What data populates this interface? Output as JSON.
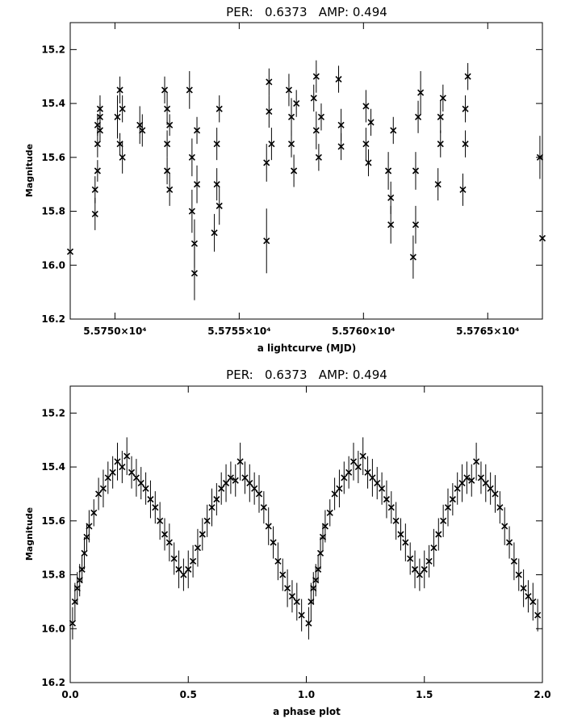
{
  "chart_data": [
    {
      "type": "scatter",
      "title": "PER:   0.6373   AMP: 0.494",
      "xlabel": "a lightcurve (MJD)",
      "ylabel": "Magnitude",
      "xlim": [
        55748.2,
        55767.2
      ],
      "ylim": [
        16.2,
        15.1
      ],
      "y_inverted": true,
      "grid": false,
      "x_ticks": [
        {
          "value": 55750,
          "label": "5.5750×10⁴"
        },
        {
          "value": 55755,
          "label": "5.5755×10⁴"
        },
        {
          "value": 55760,
          "label": "5.5760×10⁴"
        },
        {
          "value": 55765,
          "label": "5.5765×10⁴"
        }
      ],
      "y_ticks": [
        {
          "value": 15.2,
          "label": "15.2"
        },
        {
          "value": 15.4,
          "label": "15.4"
        },
        {
          "value": 15.6,
          "label": "15.6"
        },
        {
          "value": 15.8,
          "label": "15.8"
        },
        {
          "value": 16.0,
          "label": "16.0"
        },
        {
          "value": 16.2,
          "label": "16.2"
        }
      ],
      "marker": "x",
      "error_bars": true,
      "x": [
        55748.2,
        55749.2,
        55749.2,
        55749.3,
        55749.3,
        55749.3,
        55749.4,
        55749.4,
        55749.4,
        55750.1,
        55750.2,
        55750.2,
        55750.3,
        55750.3,
        55751.0,
        55751.1,
        55752.0,
        55752.1,
        55752.1,
        55752.1,
        55752.2,
        55752.2,
        55753.0,
        55753.1,
        55753.1,
        55753.2,
        55753.2,
        55753.3,
        55753.3,
        55754.0,
        55754.1,
        55754.1,
        55754.2,
        55754.2,
        55756.1,
        55756.1,
        55756.2,
        55756.2,
        55756.3,
        55757.0,
        55757.1,
        55757.1,
        55757.2,
        55757.3,
        55758.0,
        55758.1,
        55758.1,
        55758.2,
        55758.3,
        55759.0,
        55759.1,
        55759.1,
        55760.1,
        55760.1,
        55760.2,
        55760.3,
        55761.0,
        55761.1,
        55761.1,
        55761.2,
        55762.0,
        55762.1,
        55762.1,
        55762.2,
        55762.3,
        55763.0,
        55763.1,
        55763.1,
        55763.2,
        55764.0,
        55764.1,
        55764.1,
        55764.2,
        55767.1,
        55767.2
      ],
      "y": [
        15.95,
        15.81,
        15.72,
        15.65,
        15.55,
        15.48,
        15.42,
        15.5,
        15.45,
        15.45,
        15.35,
        15.55,
        15.6,
        15.42,
        15.48,
        15.5,
        15.35,
        15.42,
        15.55,
        15.65,
        15.72,
        15.48,
        15.35,
        15.6,
        15.8,
        15.92,
        16.03,
        15.7,
        15.5,
        15.88,
        15.7,
        15.55,
        15.42,
        15.78,
        15.91,
        15.62,
        15.43,
        15.32,
        15.55,
        15.35,
        15.45,
        15.55,
        15.65,
        15.4,
        15.38,
        15.3,
        15.5,
        15.6,
        15.45,
        15.31,
        15.48,
        15.56,
        15.41,
        15.55,
        15.62,
        15.47,
        15.65,
        15.75,
        15.85,
        15.5,
        15.97,
        15.85,
        15.65,
        15.45,
        15.36,
        15.7,
        15.55,
        15.45,
        15.38,
        15.72,
        15.55,
        15.42,
        15.3,
        15.6,
        15.9
      ],
      "yerr": [
        0.05,
        0.06,
        0.05,
        0.04,
        0.05,
        0.04,
        0.05,
        0.04,
        0.05,
        0.08,
        0.05,
        0.04,
        0.06,
        0.05,
        0.07,
        0.06,
        0.05,
        0.06,
        0.05,
        0.05,
        0.06,
        0.04,
        0.07,
        0.07,
        0.08,
        0.09,
        0.1,
        0.07,
        0.05,
        0.07,
        0.06,
        0.06,
        0.05,
        0.07,
        0.12,
        0.07,
        0.06,
        0.05,
        0.06,
        0.06,
        0.07,
        0.05,
        0.06,
        0.05,
        0.05,
        0.06,
        0.07,
        0.05,
        0.05,
        0.05,
        0.06,
        0.05,
        0.06,
        0.06,
        0.05,
        0.05,
        0.07,
        0.06,
        0.07,
        0.05,
        0.08,
        0.07,
        0.07,
        0.06,
        0.08,
        0.06,
        0.05,
        0.06,
        0.05,
        0.06,
        0.05,
        0.05,
        0.05,
        0.08,
        0.07
      ]
    },
    {
      "type": "scatter",
      "title": "PER:   0.6373   AMP: 0.494",
      "xlabel": "a phase plot",
      "ylabel": "Magnitude",
      "xlim": [
        0.0,
        2.0
      ],
      "ylim": [
        16.2,
        15.1
      ],
      "y_inverted": true,
      "grid": false,
      "x_ticks": [
        {
          "value": 0.0,
          "label": "0.0"
        },
        {
          "value": 0.5,
          "label": "0.5"
        },
        {
          "value": 1.0,
          "label": "1.0"
        },
        {
          "value": 1.5,
          "label": "1.5"
        },
        {
          "value": 2.0,
          "label": "2.0"
        }
      ],
      "y_ticks": [
        {
          "value": 15.2,
          "label": "15.2"
        },
        {
          "value": 15.4,
          "label": "15.4"
        },
        {
          "value": 15.6,
          "label": "15.6"
        },
        {
          "value": 15.8,
          "label": "15.8"
        },
        {
          "value": 16.0,
          "label": "16.0"
        },
        {
          "value": 16.2,
          "label": "16.2"
        }
      ],
      "marker": "x",
      "error_bars": true,
      "x": [
        0.01,
        0.02,
        0.03,
        0.04,
        0.05,
        0.06,
        0.07,
        0.08,
        0.1,
        0.12,
        0.14,
        0.16,
        0.18,
        0.2,
        0.22,
        0.24,
        0.26,
        0.28,
        0.3,
        0.32,
        0.34,
        0.36,
        0.38,
        0.4,
        0.42,
        0.44,
        0.46,
        0.48,
        0.5,
        0.52,
        0.54,
        0.56,
        0.58,
        0.6,
        0.62,
        0.64,
        0.66,
        0.68,
        0.7,
        0.72,
        0.74,
        0.76,
        0.78,
        0.8,
        0.82,
        0.84,
        0.86,
        0.88,
        0.9,
        0.92,
        0.94,
        0.96,
        0.98,
        1.01,
        1.02,
        1.03,
        1.04,
        1.05,
        1.06,
        1.07,
        1.08,
        1.1,
        1.12,
        1.14,
        1.16,
        1.18,
        1.2,
        1.22,
        1.24,
        1.26,
        1.28,
        1.3,
        1.32,
        1.34,
        1.36,
        1.38,
        1.4,
        1.42,
        1.44,
        1.46,
        1.48,
        1.5,
        1.52,
        1.54,
        1.56,
        1.58,
        1.6,
        1.62,
        1.64,
        1.66,
        1.68,
        1.7,
        1.72,
        1.74,
        1.76,
        1.78,
        1.8,
        1.82,
        1.84,
        1.86,
        1.88,
        1.9,
        1.92,
        1.94,
        1.96,
        1.98
      ],
      "y": [
        15.98,
        15.9,
        15.85,
        15.82,
        15.78,
        15.72,
        15.66,
        15.62,
        15.57,
        15.5,
        15.48,
        15.44,
        15.42,
        15.38,
        15.4,
        15.36,
        15.42,
        15.44,
        15.46,
        15.48,
        15.52,
        15.55,
        15.6,
        15.65,
        15.68,
        15.74,
        15.78,
        15.8,
        15.78,
        15.75,
        15.7,
        15.65,
        15.6,
        15.55,
        15.52,
        15.48,
        15.46,
        15.44,
        15.45,
        15.38,
        15.44,
        15.46,
        15.48,
        15.5,
        15.55,
        15.62,
        15.68,
        15.75,
        15.8,
        15.85,
        15.88,
        15.9,
        15.95,
        15.98,
        15.9,
        15.85,
        15.82,
        15.78,
        15.72,
        15.66,
        15.62,
        15.57,
        15.5,
        15.48,
        15.44,
        15.42,
        15.38,
        15.4,
        15.36,
        15.42,
        15.44,
        15.46,
        15.48,
        15.52,
        15.55,
        15.6,
        15.65,
        15.68,
        15.74,
        15.78,
        15.8,
        15.78,
        15.75,
        15.7,
        15.65,
        15.6,
        15.55,
        15.52,
        15.48,
        15.46,
        15.44,
        15.45,
        15.38,
        15.44,
        15.46,
        15.48,
        15.5,
        15.55,
        15.62,
        15.68,
        15.75,
        15.8,
        15.85,
        15.88,
        15.9,
        15.95
      ],
      "yerr": [
        0.06,
        0.07,
        0.06,
        0.06,
        0.05,
        0.06,
        0.05,
        0.06,
        0.05,
        0.06,
        0.07,
        0.06,
        0.06,
        0.07,
        0.06,
        0.07,
        0.06,
        0.07,
        0.06,
        0.06,
        0.07,
        0.06,
        0.07,
        0.06,
        0.07,
        0.06,
        0.07,
        0.06,
        0.07,
        0.06,
        0.07,
        0.06,
        0.06,
        0.07,
        0.06,
        0.06,
        0.07,
        0.06,
        0.06,
        0.07,
        0.06,
        0.07,
        0.06,
        0.07,
        0.06,
        0.07,
        0.06,
        0.07,
        0.06,
        0.07,
        0.06,
        0.07,
        0.06,
        0.06,
        0.07,
        0.06,
        0.06,
        0.05,
        0.06,
        0.05,
        0.06,
        0.05,
        0.06,
        0.07,
        0.06,
        0.06,
        0.07,
        0.06,
        0.07,
        0.06,
        0.07,
        0.06,
        0.06,
        0.07,
        0.06,
        0.07,
        0.06,
        0.07,
        0.06,
        0.07,
        0.06,
        0.07,
        0.06,
        0.07,
        0.06,
        0.06,
        0.07,
        0.06,
        0.06,
        0.07,
        0.06,
        0.06,
        0.07,
        0.06,
        0.07,
        0.06,
        0.07,
        0.06,
        0.07,
        0.06,
        0.07,
        0.06,
        0.07,
        0.06,
        0.07,
        0.06
      ]
    }
  ]
}
